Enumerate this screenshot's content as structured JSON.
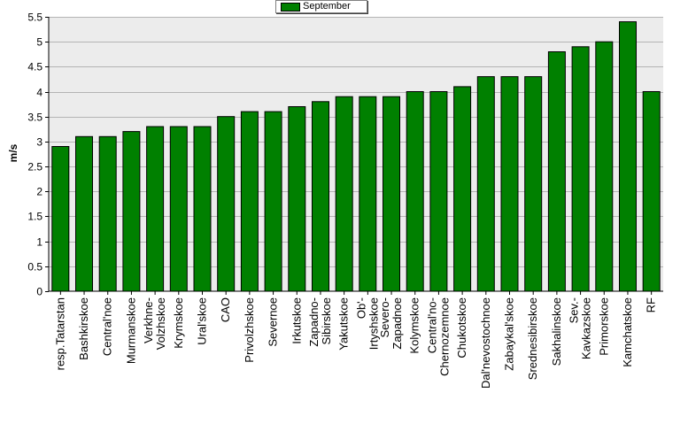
{
  "chart_data": {
    "type": "bar",
    "title": "",
    "xlabel": "",
    "ylabel": "m/s",
    "ylim": [
      0,
      5.5
    ],
    "ytick_step": 0.5,
    "grid": true,
    "legend_position": "top-center",
    "bar_color": "#008000",
    "plot_background": "#ececec",
    "categories": [
      "resp.Tatarstan",
      "Bashkirskoe",
      "Central'noe",
      "Murmanskoe",
      "Verkhne-Volzhskoe",
      "Krymskoe",
      "Ural'skoe",
      "CAO",
      "Privolzhskoe",
      "Severnoe",
      "Irkutskoe",
      "Zapadno-Sibirskoe",
      "Yakutskoe",
      "Ob'-Irtyshskoe",
      "Severo-Zapadnoe",
      "Kolymskoe",
      "Central'no-Chernozemnoe",
      "Chukotskoe",
      "Dal'nevostochnoe",
      "Zabaykal'skoe",
      "Srednesibirskoe",
      "Sakhalinskoe",
      "Sev.-Kavkazskoe",
      "Primorskoe",
      "Kamchatskoe",
      "RF"
    ],
    "tick_label_lines": [
      [
        "resp.Tatarstan"
      ],
      [
        "Bashkirskoe"
      ],
      [
        "Central'noe"
      ],
      [
        "Murmanskoe"
      ],
      [
        "Verkhne-",
        "Volzhskoe"
      ],
      [
        "Krymskoe"
      ],
      [
        "Ural'skoe"
      ],
      [
        "CAO"
      ],
      [
        "Privolzhskoe"
      ],
      [
        "Severnoe"
      ],
      [
        "Irkutskoe"
      ],
      [
        "Zapadno-",
        "Sibirskoe"
      ],
      [
        "Yakutskoe"
      ],
      [
        "Ob'-",
        "Irtyshskoe"
      ],
      [
        "Severo-",
        "Zapadnoe"
      ],
      [
        "Kolymskoe"
      ],
      [
        "Central'no-",
        "Chernozemnoe"
      ],
      [
        "Chukotskoe"
      ],
      [
        "Dal'nevostochnoe"
      ],
      [
        "Zabaykal'skoe"
      ],
      [
        "Srednesibirskoe"
      ],
      [
        "Sakhalinskoe"
      ],
      [
        "Sev.-",
        "Kavkazskoe"
      ],
      [
        "Primorskoe"
      ],
      [
        "Kamchatskoe"
      ],
      [
        "RF"
      ]
    ],
    "series": [
      {
        "name": "September",
        "values": [
          2.9,
          3.1,
          3.1,
          3.2,
          3.3,
          3.3,
          3.3,
          3.5,
          3.6,
          3.6,
          3.7,
          3.8,
          3.9,
          3.9,
          3.9,
          4.0,
          4.0,
          4.1,
          4.3,
          4.3,
          4.3,
          4.8,
          4.9,
          5.0,
          5.4,
          4.0
        ]
      }
    ]
  }
}
